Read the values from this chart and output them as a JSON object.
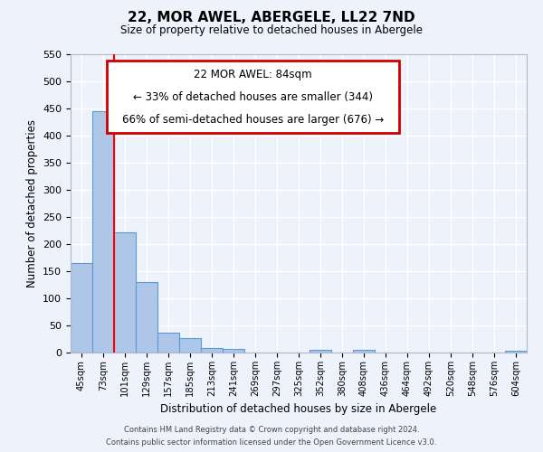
{
  "title": "22, MOR AWEL, ABERGELE, LL22 7ND",
  "subtitle": "Size of property relative to detached houses in Abergele",
  "xlabel": "Distribution of detached houses by size in Abergele",
  "ylabel": "Number of detached properties",
  "bin_labels": [
    "45sqm",
    "73sqm",
    "101sqm",
    "129sqm",
    "157sqm",
    "185sqm",
    "213sqm",
    "241sqm",
    "269sqm",
    "297sqm",
    "325sqm",
    "352sqm",
    "380sqm",
    "408sqm",
    "436sqm",
    "464sqm",
    "492sqm",
    "520sqm",
    "548sqm",
    "576sqm",
    "604sqm"
  ],
  "bin_values": [
    165,
    445,
    222,
    130,
    37,
    26,
    9,
    6,
    0,
    0,
    0,
    5,
    0,
    5,
    0,
    0,
    0,
    0,
    0,
    0,
    3
  ],
  "bar_color": "#aec6e8",
  "bar_edge_color": "#5b9bd5",
  "ylim": [
    0,
    550
  ],
  "yticks": [
    0,
    50,
    100,
    150,
    200,
    250,
    300,
    350,
    400,
    450,
    500,
    550
  ],
  "red_line_label": "22 MOR AWEL: 84sqm",
  "annotation_line1": "← 33% of detached houses are smaller (344)",
  "annotation_line2": "66% of semi-detached houses are larger (676) →",
  "annotation_box_color": "#ffffff",
  "annotation_box_edge": "#cc0000",
  "footer_line1": "Contains HM Land Registry data © Crown copyright and database right 2024.",
  "footer_line2": "Contains public sector information licensed under the Open Government Licence v3.0.",
  "background_color": "#eef2fa",
  "grid_color": "#ffffff"
}
